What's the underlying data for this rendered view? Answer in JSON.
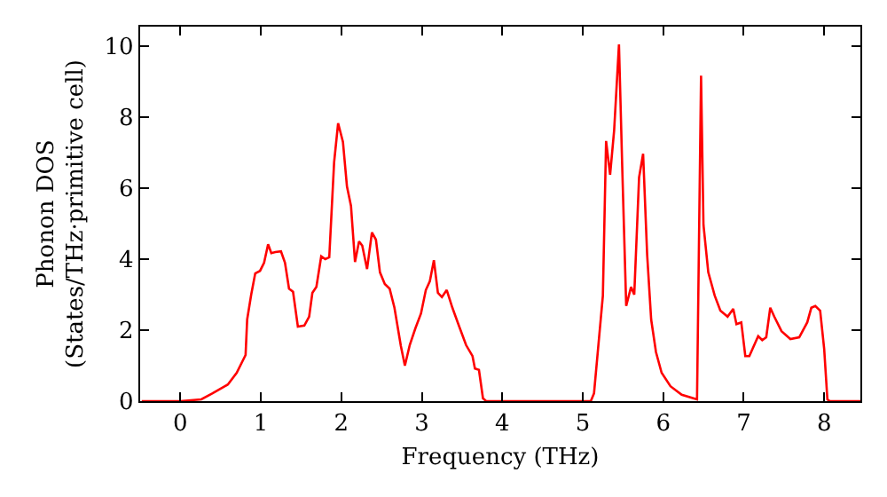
{
  "chart_data": {
    "type": "line",
    "xlabel": "Frequency (THz)",
    "ylabel": "Phonon DOS\n(States/THz·primitive cell)",
    "xlim": [
      -0.5,
      8.45
    ],
    "ylim": [
      0,
      10.55
    ],
    "xticks": [
      0,
      1,
      2,
      3,
      4,
      5,
      6,
      7,
      8
    ],
    "yticks": [
      0,
      2,
      4,
      6,
      8,
      10
    ],
    "marker": "none",
    "line_style": "solid",
    "series": [
      {
        "color": "#ff0000",
        "x": [
          -0.48,
          0,
          0.26,
          0.4,
          0.59,
          0.7,
          0.81,
          0.83,
          0.88,
          0.93,
          0.99,
          1.04,
          1.09,
          1.13,
          1.18,
          1.25,
          1.3,
          1.35,
          1.4,
          1.46,
          1.54,
          1.6,
          1.64,
          1.69,
          1.75,
          1.8,
          1.85,
          1.91,
          1.96,
          2.02,
          2.07,
          2.12,
          2.17,
          2.22,
          2.26,
          2.32,
          2.38,
          2.43,
          2.48,
          2.54,
          2.6,
          2.66,
          2.74,
          2.79,
          2.85,
          2.92,
          2.99,
          3.05,
          3.1,
          3.15,
          3.2,
          3.25,
          3.31,
          3.38,
          3.46,
          3.55,
          3.63,
          3.66,
          3.71,
          3.76,
          3.8,
          4.0,
          5.0,
          5.1,
          5.14,
          5.19,
          5.25,
          5.29,
          5.34,
          5.39,
          5.45,
          5.49,
          5.54,
          5.6,
          5.64,
          5.7,
          5.75,
          5.8,
          5.85,
          5.91,
          5.98,
          6.09,
          6.23,
          6.42,
          6.47,
          6.5,
          6.56,
          6.64,
          6.71,
          6.8,
          6.87,
          6.91,
          6.97,
          7.02,
          7.07,
          7.18,
          7.23,
          7.28,
          7.33,
          7.38,
          7.47,
          7.58,
          7.69,
          7.79,
          7.84,
          7.89,
          7.95,
          8.0,
          8.04,
          8.07,
          8.45
        ],
        "values": [
          0,
          0,
          0.05,
          0.22,
          0.47,
          0.8,
          1.3,
          2.3,
          3.0,
          3.6,
          3.67,
          3.9,
          4.42,
          4.17,
          4.2,
          4.22,
          3.9,
          3.17,
          3.08,
          2.1,
          2.13,
          2.38,
          3.05,
          3.22,
          4.08,
          4.0,
          4.05,
          6.72,
          7.83,
          7.3,
          6.05,
          5.5,
          3.92,
          4.5,
          4.38,
          3.72,
          4.75,
          4.55,
          3.63,
          3.3,
          3.17,
          2.63,
          1.55,
          1.0,
          1.58,
          2.05,
          2.47,
          3.13,
          3.38,
          3.97,
          3.05,
          2.93,
          3.13,
          2.63,
          2.13,
          1.58,
          1.27,
          0.92,
          0.88,
          0.08,
          0,
          0,
          0,
          0,
          0.22,
          1.47,
          2.97,
          7.33,
          6.38,
          7.63,
          10.05,
          6.63,
          2.68,
          3.22,
          3.0,
          6.3,
          6.97,
          4.13,
          2.3,
          1.38,
          0.8,
          0.42,
          0.18,
          0.05,
          9.17,
          4.97,
          3.63,
          2.97,
          2.55,
          2.38,
          2.6,
          2.17,
          2.22,
          1.27,
          1.27,
          1.83,
          1.72,
          1.8,
          2.63,
          2.38,
          1.97,
          1.75,
          1.8,
          2.22,
          2.63,
          2.68,
          2.55,
          1.47,
          0.05,
          0,
          0
        ]
      }
    ]
  }
}
